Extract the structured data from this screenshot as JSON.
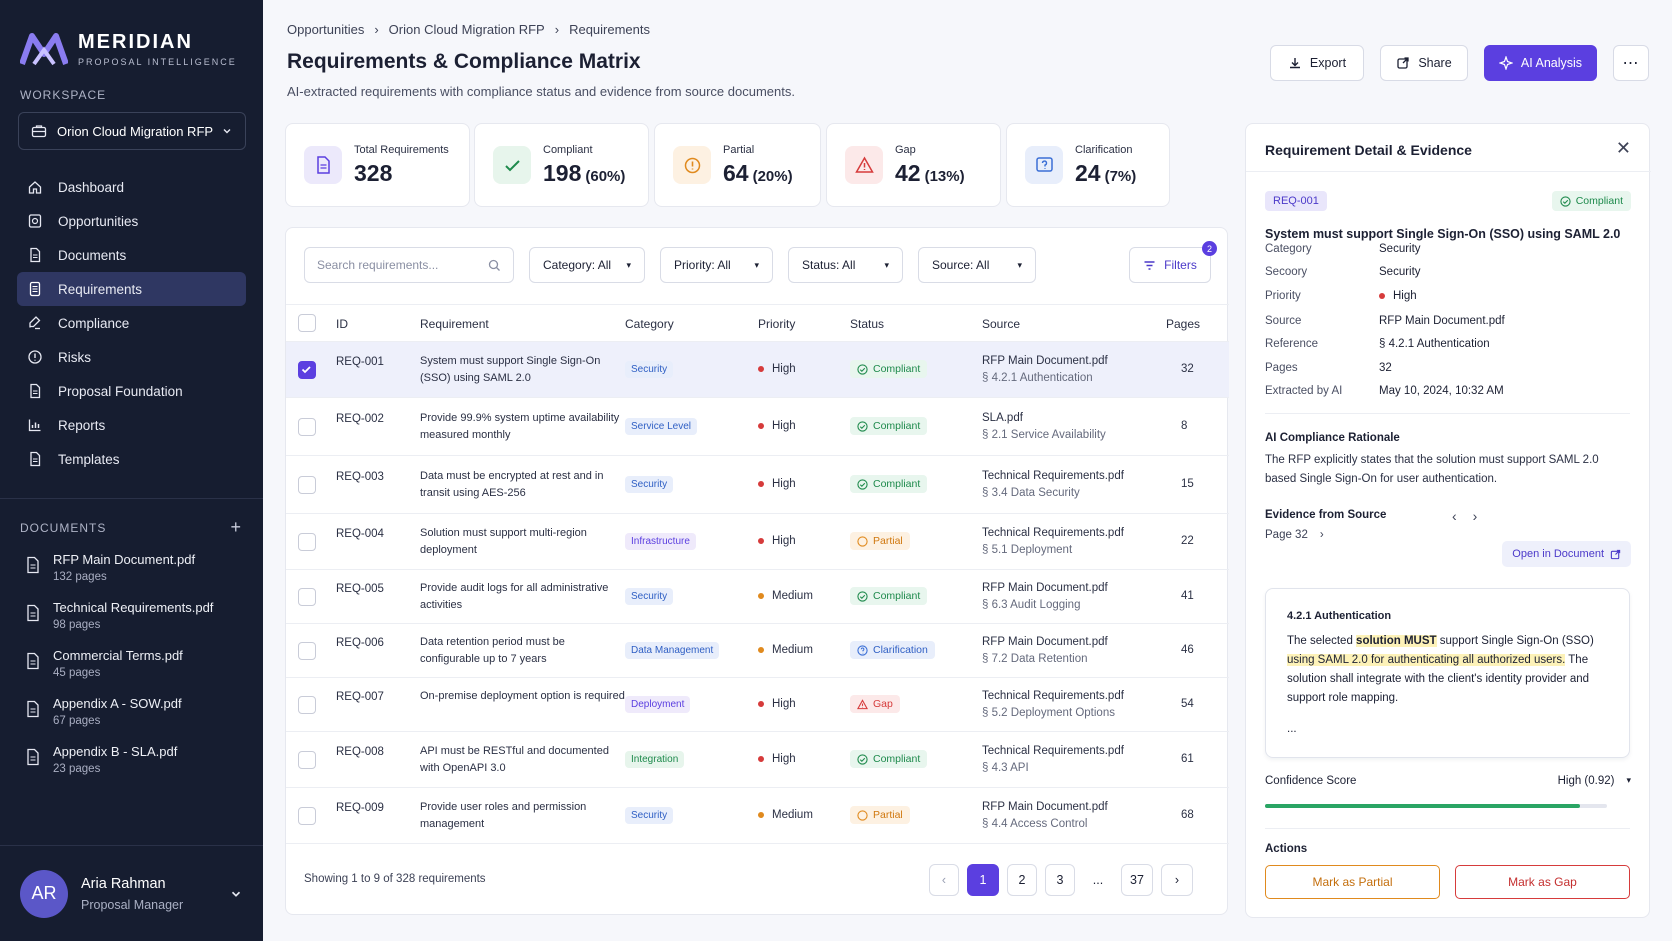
{
  "brand": {
    "name": "MERIDIAN",
    "tagline": "PROPOSAL INTELLIGENCE"
  },
  "sidebar": {
    "workspace_label": "WORKSPACE",
    "workspace": "Orion Cloud Migration RFP",
    "nav": [
      {
        "label": "Dashboard",
        "icon": "home-icon"
      },
      {
        "label": "Opportunities",
        "icon": "briefcase-icon"
      },
      {
        "label": "Documents",
        "icon": "document-icon"
      },
      {
        "label": "Requirements",
        "icon": "list-doc-icon",
        "active": true
      },
      {
        "label": "Compliance",
        "icon": "check-edit-icon"
      },
      {
        "label": "Risks",
        "icon": "alert-circle-icon"
      },
      {
        "label": "Proposal Foundation",
        "icon": "document-icon"
      },
      {
        "label": "Reports",
        "icon": "chart-icon"
      },
      {
        "label": "Templates",
        "icon": "document-icon"
      }
    ],
    "documents_label": "DOCUMENTS",
    "documents": [
      {
        "name": "RFP Main Document.pdf",
        "pages": "132 pages"
      },
      {
        "name": "Technical Requirements.pdf",
        "pages": "98 pages"
      },
      {
        "name": "Commercial Terms.pdf",
        "pages": "45 pages"
      },
      {
        "name": "Appendix A - SOW.pdf",
        "pages": "67 pages"
      },
      {
        "name": "Appendix B - SLA.pdf",
        "pages": "23 pages"
      }
    ],
    "user": {
      "initials": "AR",
      "name": "Aria Rahman",
      "role": "Proposal Manager"
    }
  },
  "header": {
    "breadcrumbs": [
      "Opportunities",
      "Orion Cloud Migration RFP",
      "Requirements"
    ],
    "title": "Requirements & Compliance Matrix",
    "subtitle": "AI-extracted requirements with compliance status and evidence from source documents.",
    "export": "Export",
    "share": "Share",
    "ai": "AI Analysis"
  },
  "stats": [
    {
      "label": "Total Requirements",
      "value": "328",
      "pct": ""
    },
    {
      "label": "Compliant",
      "value": "198",
      "pct": "(60%)"
    },
    {
      "label": "Partial",
      "value": "64",
      "pct": "(20%)"
    },
    {
      "label": "Gap",
      "value": "42",
      "pct": "(13%)"
    },
    {
      "label": "Clarification",
      "value": "24",
      "pct": "(7%)"
    }
  ],
  "toolbar": {
    "search_placeholder": "Search requirements...",
    "category": "Category: All",
    "priority": "Priority: All",
    "status": "Status: All",
    "source": "Source: All",
    "filters": "Filters",
    "filters_count": "2"
  },
  "table": {
    "columns": [
      "ID",
      "Requirement",
      "Category",
      "Priority",
      "Status",
      "Source",
      "Pages"
    ],
    "rows": [
      {
        "id": "REQ-001",
        "req": "System must support Single Sign-On (SSO) using SAML 2.0",
        "cat": "Security",
        "prio": "High",
        "status": "Compliant",
        "src": "RFP Main Document.pdf",
        "ref": "§ 4.2.1 Authentication",
        "pages": "32",
        "selected": true
      },
      {
        "id": "REQ-002",
        "req": "Provide 99.9% system uptime availability measured monthly",
        "cat": "Service Level",
        "prio": "High",
        "status": "Compliant",
        "src": "SLA.pdf",
        "ref": "§ 2.1 Service Availability",
        "pages": "8"
      },
      {
        "id": "REQ-003",
        "req": "Data must be encrypted at rest and in transit using AES-256",
        "cat": "Security",
        "prio": "High",
        "status": "Compliant",
        "src": "Technical Requirements.pdf",
        "ref": "§ 3.4 Data Security",
        "pages": "15"
      },
      {
        "id": "REQ-004",
        "req": "Solution must support multi-region deployment",
        "cat": "Infrastructure",
        "prio": "High",
        "status": "Partial",
        "src": "Technical Requirements.pdf",
        "ref": "§ 5.1 Deployment",
        "pages": "22"
      },
      {
        "id": "REQ-005",
        "req": "Provide audit logs for all administrative activities",
        "cat": "Security",
        "prio": "Medium",
        "status": "Compliant",
        "src": "RFP Main Document.pdf",
        "ref": "§ 6.3 Audit Logging",
        "pages": "41"
      },
      {
        "id": "REQ-006",
        "req": "Data retention period must be configurable up to 7 years",
        "cat": "Data Management",
        "prio": "Medium",
        "status": "Clarification",
        "src": "RFP Main Document.pdf",
        "ref": "§ 7.2 Data Retention",
        "pages": "46"
      },
      {
        "id": "REQ-007",
        "req": "On-premise deployment option is required",
        "cat": "Deployment",
        "prio": "High",
        "status": "Gap",
        "src": "Technical Requirements.pdf",
        "ref": "§ 5.2 Deployment Options",
        "pages": "54"
      },
      {
        "id": "REQ-008",
        "req": "API must be RESTful and documented with OpenAPI 3.0",
        "cat": "Integration",
        "prio": "High",
        "status": "Compliant",
        "src": "Technical Requirements.pdf",
        "ref": "§ 4.3 API",
        "pages": "61"
      },
      {
        "id": "REQ-009",
        "req": "Provide user roles and permission management",
        "cat": "Security",
        "prio": "Medium",
        "status": "Partial",
        "src": "RFP Main Document.pdf",
        "ref": "§ 4.4 Access Control",
        "pages": "68"
      }
    ],
    "footer": "Showing 1 to 9 of 328 requirements",
    "pages": [
      "1",
      "2",
      "3",
      "...",
      "37"
    ]
  },
  "detail": {
    "title": "Requirement Detail & Evidence",
    "id": "REQ-001",
    "status": "Compliant",
    "req_title": "System must support Single Sign-On (SSO) using SAML 2.0",
    "fields": [
      {
        "k": "Category",
        "v": "Security"
      },
      {
        "k": "Secoory",
        "v": "Security"
      },
      {
        "k": "Priority",
        "v": "High"
      },
      {
        "k": "Source",
        "v": "RFP Main Document.pdf"
      },
      {
        "k": "Reference",
        "v": "§ 4.2.1 Authentication"
      },
      {
        "k": "Pages",
        "v": "32"
      },
      {
        "k": "Extracted by AI",
        "v": "May 10, 2024, 10:32 AM"
      }
    ],
    "rationale_title": "AI Compliance Rationale",
    "rationale": "The RFP explicitly states that the solution must support SAML 2.0 based Single Sign-On for user authentication.",
    "evidence_title": "Evidence from Source",
    "evidence_page": "Page 32",
    "open_doc": "Open in Document",
    "evidence_heading": "4.2.1 Authentication",
    "ev_pre": "The selected ",
    "ev_hl1": "solution MUST",
    "ev_mid": " support Single Sign-On (SSO) ",
    "ev_hl2": "using SAML 2.0 for authenticating all authorized users.",
    "ev_post": " The solution shall integrate with the client's identity provider and support role mapping.",
    "ev_more": "...",
    "confidence_label": "Confidence Score",
    "confidence_value": "High (0.92)",
    "confidence": 0.92,
    "actions_label": "Actions",
    "mark_partial": "Mark as Partial",
    "mark_gap": "Mark as Gap"
  },
  "colors": {
    "accent": "#5b3fe0",
    "compliant": "#1e8a4c",
    "partial": "#e08a1e",
    "gap": "#d63b3b",
    "clarification": "#3b6fd6"
  }
}
